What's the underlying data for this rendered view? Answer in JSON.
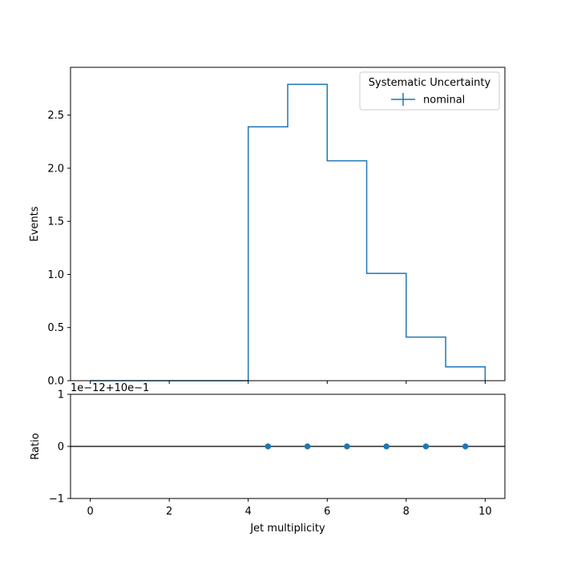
{
  "chart_data": {
    "type": "step-histogram-with-ratio",
    "main_panel": {
      "ylabel": "Events",
      "ylim": [
        0,
        2.95
      ],
      "yticks": [
        0.0,
        0.5,
        1.0,
        1.5,
        2.0,
        2.5
      ],
      "ytick_labels": [
        "0.0",
        "0.5",
        "1.0",
        "1.5",
        "2.0",
        "2.5"
      ],
      "bin_edges": [
        0,
        1,
        2,
        3,
        4,
        5,
        6,
        7,
        8,
        9,
        10
      ],
      "series": [
        {
          "name": "nominal",
          "color": "#1f77b4",
          "values": [
            0,
            0,
            0,
            0,
            2.39,
            2.79,
            2.07,
            1.01,
            0.41,
            0.13
          ]
        }
      ],
      "legend": {
        "title": "Systematic Uncertainty",
        "entries": [
          "nominal"
        ],
        "placement": "top-right"
      }
    },
    "ratio_panel": {
      "ylabel": "Ratio",
      "ylim": [
        -1,
        1
      ],
      "yticks": [
        -1,
        0,
        1
      ],
      "ytick_labels": [
        "−1",
        "0",
        "1"
      ],
      "offset_label": "1e−12+10e−1",
      "reference_line": 0,
      "points": {
        "x": [
          4.5,
          5.5,
          6.5,
          7.5,
          8.5,
          9.5
        ],
        "y": [
          0,
          0,
          0,
          0,
          0,
          0
        ],
        "color": "#1f77b4"
      }
    },
    "xlabel": "Jet multiplicity",
    "xlim": [
      -0.5,
      10.5
    ],
    "xticks": [
      0,
      2,
      4,
      6,
      8,
      10
    ],
    "xtick_labels": [
      "0",
      "2",
      "4",
      "6",
      "8",
      "10"
    ]
  }
}
